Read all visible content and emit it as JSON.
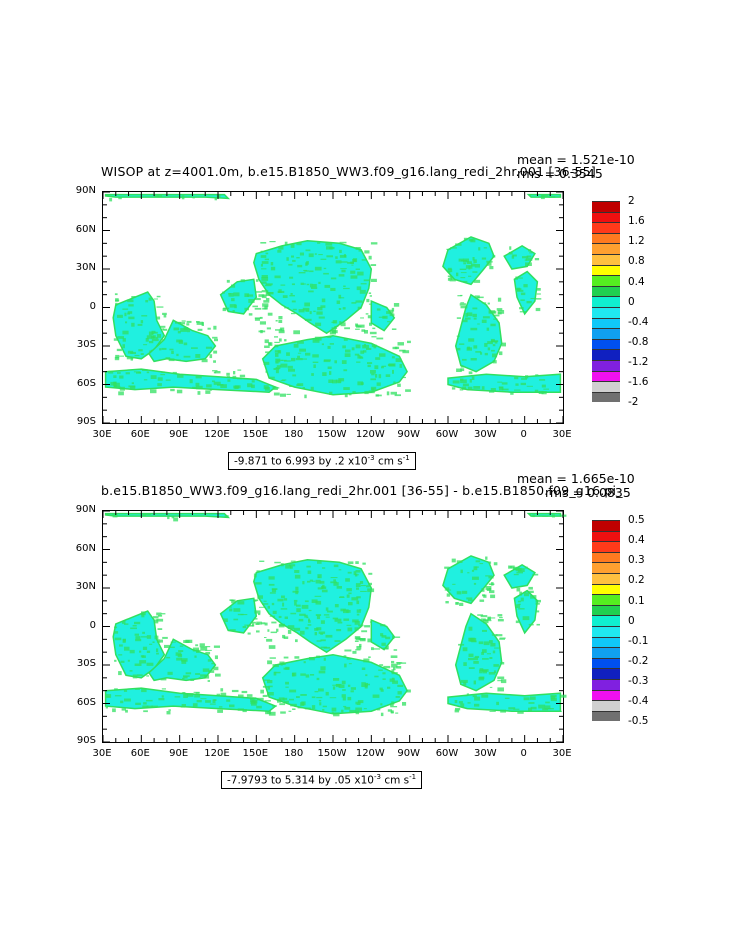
{
  "panel1": {
    "title": "WISOP at z=4001.0m, b.e15.B1850_WW3.f09_g16.lang_redi_2hr.001 [36-55]",
    "mean": "mean = 1.521e-10",
    "rms": "rms = 0.3545",
    "range_text": "-9.871 to 6.993 by .2 x10",
    "range_exp": "-3",
    "range_unit": "cm s",
    "range_unit_exp": "-1",
    "legend_labels": [
      "2",
      "1.6",
      "1.2",
      "0.8",
      "0.4",
      "0",
      "-0.4",
      "-0.8",
      "-1.2",
      "-1.6",
      "-2"
    ]
  },
  "panel2": {
    "title": "b.e15.B1850_WW3.f09_g16.lang_redi_2hr.001 [36-55] - b.e15.B1850.f09_g16.pi_",
    "mean": "mean = 1.665e-10",
    "rms": "rms = 0.0835",
    "range_text": "-7.9793 to 5.314 by .05 x10",
    "range_exp": "-3",
    "range_unit": "cm s",
    "range_unit_exp": "-1",
    "legend_labels": [
      "0.5",
      "0.4",
      "0.3",
      "0.2",
      "0.1",
      "0",
      "-0.1",
      "-0.2",
      "-0.3",
      "-0.4",
      "-0.5"
    ]
  },
  "axes": {
    "lat_labels": [
      "90N",
      "60N",
      "30N",
      "0",
      "30S",
      "60S",
      "90S"
    ],
    "lon_labels": [
      "30E",
      "60E",
      "90E",
      "120E",
      "150E",
      "180",
      "150W",
      "120W",
      "90W",
      "60W",
      "30W",
      "0",
      "30E"
    ]
  },
  "colors": {
    "legend_swatches": [
      "#c00000",
      "#ee1010",
      "#ff3a1a",
      "#ff7a20",
      "#ffa030",
      "#ffc040",
      "#ffff00",
      "#55ee20",
      "#20d050",
      "#10f0d0",
      "#20e8f0",
      "#10c8f8",
      "#10a0f0",
      "#0050f0",
      "#1020c0",
      "#8020e0",
      "#f010f0",
      "#d0d0d0",
      "#707070"
    ],
    "ocean_main": "#20f0e0",
    "ocean_green": "#30e060"
  },
  "chart_data": [
    {
      "type": "heatmap",
      "title": "WISOP at z=4001.0m, b.e15.B1850_WW3.f09_g16.lang_redi_2hr.001 [36-55]",
      "xlabel": "",
      "ylabel": "",
      "x_ticks": [
        "30E",
        "60E",
        "90E",
        "120E",
        "150E",
        "180",
        "150W",
        "120W",
        "90W",
        "60W",
        "30W",
        "0",
        "30E"
      ],
      "y_ticks": [
        "90N",
        "60N",
        "30N",
        "0",
        "30S",
        "60S",
        "90S"
      ],
      "color_levels": [
        2,
        1.6,
        1.2,
        0.8,
        0.4,
        0,
        -0.4,
        -0.8,
        -1.2,
        -1.6,
        -2
      ],
      "min": -9.871,
      "max": 6.993,
      "interval": 0.2,
      "mean": 1.521e-10,
      "rms": 0.3545
    },
    {
      "type": "heatmap",
      "title": "b.e15.B1850_WW3.f09_g16.lang_redi_2hr.001 [36-55] - b.e15.B1850.f09_g16.pi_",
      "xlabel": "",
      "ylabel": "",
      "x_ticks": [
        "30E",
        "60E",
        "90E",
        "120E",
        "150E",
        "180",
        "150W",
        "120W",
        "90W",
        "60W",
        "30W",
        "0",
        "30E"
      ],
      "y_ticks": [
        "90N",
        "60N",
        "30N",
        "0",
        "30S",
        "60S",
        "90S"
      ],
      "color_levels": [
        0.5,
        0.4,
        0.3,
        0.2,
        0.1,
        0,
        -0.1,
        -0.2,
        -0.3,
        -0.4,
        -0.5
      ],
      "min": -7.9793,
      "max": 5.314,
      "interval": 0.05,
      "mean": 1.665e-10,
      "rms": 0.0835
    }
  ]
}
